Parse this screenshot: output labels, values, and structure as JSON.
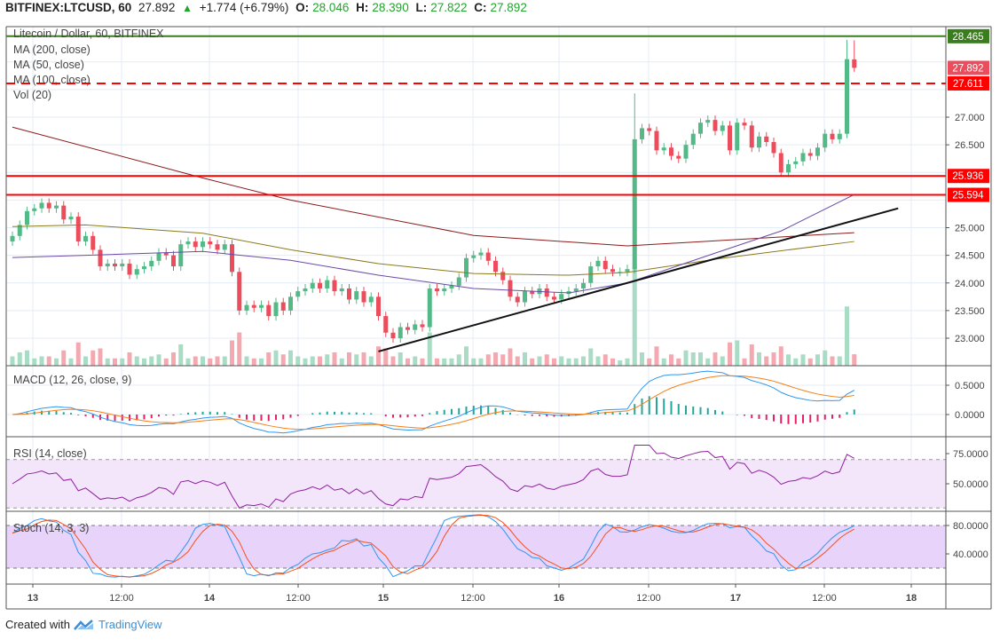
{
  "header": {
    "symbol": "BITFINEX:LTCUSD, 60",
    "last": "27.892",
    "change": "+1.774 (+6.79%)",
    "o_label": "O:",
    "o": "28.046",
    "h_label": "H:",
    "h": "28.390",
    "l_label": "L:",
    "l": "27.822",
    "c_label": "C:",
    "c": "27.892",
    "up_icon": "triangle-up"
  },
  "legend": {
    "title": "Litecoin / Dollar, 60, BITFINEX",
    "ma200": "MA (200, close)",
    "ma50": "MA (50, close)",
    "ma100": "MA (100, close)",
    "vol": "Vol (20)",
    "macd": "MACD (12, 26, close, 9)",
    "rsi": "RSI (14, close)",
    "stoch": "Stoch (14, 3, 3)"
  },
  "footer": {
    "created_with": "Created with",
    "brand": "TradingView"
  },
  "colors": {
    "up": "#53b987",
    "down": "#eb4d5c",
    "vol_up": "#a8dcc4",
    "vol_down": "#f4a9b0",
    "ma200": "#8b1a1a",
    "ma100": "#8a7a1c",
    "ma50": "#6a4aa8",
    "green_level": "#3a7d1e",
    "red_level": "#ff0000",
    "macd": "#2e96f0",
    "signal": "#f57f17",
    "rsi": "#8e1f9e",
    "stoch_k": "#2e96f0",
    "stoch_d": "#f4511e"
  },
  "chart_data": {
    "type": "candlestick",
    "interval": "60",
    "x_ticks": [
      "13",
      "12:00",
      "14",
      "12:00",
      "15",
      "12:00",
      "16",
      "12:00",
      "17",
      "12:00",
      "18"
    ],
    "price_ticks": [
      "27.000",
      "26.500",
      "25.000",
      "24.500",
      "24.000",
      "23.500",
      "23.000"
    ],
    "price_range": [
      22.6,
      28.8
    ],
    "closes": [
      24.85,
      25.05,
      25.3,
      25.35,
      25.45,
      25.35,
      25.4,
      25.15,
      25.2,
      24.75,
      24.85,
      24.6,
      24.3,
      24.35,
      24.3,
      24.35,
      24.15,
      24.25,
      24.3,
      24.4,
      24.55,
      24.5,
      24.3,
      24.7,
      24.75,
      24.65,
      24.75,
      24.7,
      24.6,
      24.7,
      24.2,
      23.5,
      23.6,
      23.55,
      23.6,
      23.4,
      23.65,
      23.5,
      23.75,
      23.85,
      23.9,
      24.0,
      23.9,
      24.05,
      23.85,
      23.9,
      23.7,
      23.85,
      23.65,
      23.75,
      23.4,
      23.1,
      23.0,
      23.2,
      23.15,
      23.25,
      23.2,
      23.9,
      23.85,
      23.9,
      23.95,
      24.1,
      24.45,
      24.5,
      24.55,
      24.4,
      24.2,
      24.05,
      23.75,
      23.65,
      23.85,
      23.8,
      23.9,
      23.75,
      23.7,
      23.8,
      23.85,
      23.9,
      24.0,
      24.3,
      24.4,
      24.25,
      24.2,
      24.2,
      24.25,
      26.6,
      26.8,
      26.75,
      26.4,
      26.45,
      26.3,
      26.25,
      26.5,
      26.7,
      26.9,
      26.95,
      26.75,
      26.85,
      26.4,
      26.9,
      26.85,
      26.45,
      26.65,
      26.55,
      26.35,
      26.0,
      26.15,
      26.2,
      26.35,
      26.3,
      26.45,
      26.7,
      26.6,
      26.7,
      28.05,
      27.892
    ],
    "last_bar": {
      "open": 28.046,
      "high": 28.39,
      "low": 27.822,
      "close": 27.892
    },
    "ma200": {
      "bars": [
        0,
        26,
        38,
        63,
        84,
        115
      ],
      "values": [
        26.82,
        25.9,
        25.5,
        24.86,
        24.67,
        24.91
      ]
    },
    "ma100": {
      "bars": [
        0,
        10,
        26,
        38,
        50,
        63,
        76,
        84,
        96,
        115
      ],
      "values": [
        25.02,
        25.05,
        24.9,
        24.6,
        24.35,
        24.17,
        24.14,
        24.19,
        24.43,
        24.75
      ]
    },
    "ma50": {
      "bars": [
        0,
        10,
        26,
        38,
        50,
        63,
        76,
        84,
        96,
        105,
        115
      ],
      "values": [
        24.46,
        24.5,
        24.57,
        24.41,
        24.14,
        23.9,
        23.82,
        24.0,
        24.54,
        24.94,
        25.6
      ]
    },
    "trendline": {
      "from_bar": 50,
      "from_price": 22.76,
      "to_bar": 121,
      "to_price": 25.35
    },
    "levels": [
      {
        "price": 28.465,
        "label": "28.465",
        "style": "solid",
        "color": "#3a7d1e"
      },
      {
        "price": 27.892,
        "label": "27.892",
        "style": "last",
        "color": "#eb4d5c"
      },
      {
        "price": 27.611,
        "label": "27.611",
        "style": "dashed",
        "color": "#ff0000"
      },
      {
        "price": 25.936,
        "label": "25.936",
        "style": "solid",
        "color": "#ff0000"
      },
      {
        "price": 25.594,
        "label": "25.594",
        "style": "solid",
        "color": "#ff0000"
      }
    ],
    "macd_ticks": [
      "0.5000",
      "0.0000"
    ],
    "rsi_ticks": [
      "75.0000",
      "50.0000"
    ],
    "stoch_ticks": [
      "80.0000",
      "40.0000"
    ]
  }
}
